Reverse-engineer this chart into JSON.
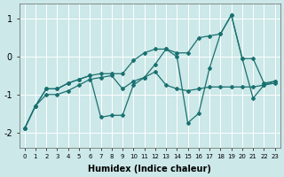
{
  "xlabel": "Humidex (Indice chaleur)",
  "bg_color": "#cce8e8",
  "line_color": "#1a7070",
  "grid_color": "#ffffff",
  "xlim": [
    -0.5,
    23.5
  ],
  "ylim": [
    -2.4,
    1.4
  ],
  "yticks": [
    -2,
    -1,
    0,
    1
  ],
  "xticks": [
    0,
    1,
    2,
    3,
    4,
    5,
    6,
    7,
    8,
    9,
    10,
    11,
    12,
    13,
    14,
    15,
    16,
    17,
    18,
    19,
    20,
    21,
    22,
    23
  ],
  "line1_x": [
    0,
    1,
    2,
    3,
    4,
    5,
    6,
    7,
    8,
    9,
    10,
    11,
    12,
    13,
    14,
    15,
    16,
    17,
    18,
    19,
    20,
    21,
    22,
    23
  ],
  "line1_y": [
    -1.9,
    -1.3,
    -1.0,
    -1.0,
    -0.9,
    -0.75,
    -0.6,
    -0.55,
    -0.5,
    -0.85,
    -0.65,
    -0.55,
    -0.4,
    -0.75,
    -0.85,
    -0.9,
    -0.85,
    -0.8,
    -0.8,
    -0.8,
    -0.8,
    -0.8,
    -0.75,
    -0.7
  ],
  "line2_x": [
    0,
    1,
    2,
    3,
    4,
    5,
    6,
    7,
    8,
    9,
    10,
    11,
    12,
    13,
    14,
    15,
    16,
    17,
    18,
    19,
    20,
    21,
    22,
    23
  ],
  "line2_y": [
    -1.9,
    -1.3,
    -0.85,
    -0.85,
    -0.7,
    -0.6,
    -0.5,
    -1.6,
    -1.55,
    -1.55,
    -0.75,
    -0.55,
    -0.2,
    0.2,
    0.0,
    -1.75,
    -1.5,
    -0.3,
    0.6,
    1.1,
    -0.05,
    -1.1,
    -0.75,
    -0.65
  ],
  "line3_x": [
    0,
    1,
    2,
    3,
    4,
    5,
    6,
    7,
    8,
    9,
    10,
    11,
    12,
    13,
    14,
    15,
    16,
    17,
    18,
    19,
    20,
    21,
    22,
    23
  ],
  "line3_y": [
    -1.9,
    -1.3,
    -0.85,
    -0.85,
    -0.7,
    -0.6,
    -0.5,
    -0.45,
    -0.45,
    -0.45,
    -0.1,
    0.1,
    0.2,
    0.2,
    0.1,
    0.1,
    0.5,
    0.55,
    0.6,
    1.1,
    -0.05,
    -0.05,
    -0.7,
    -0.65
  ]
}
